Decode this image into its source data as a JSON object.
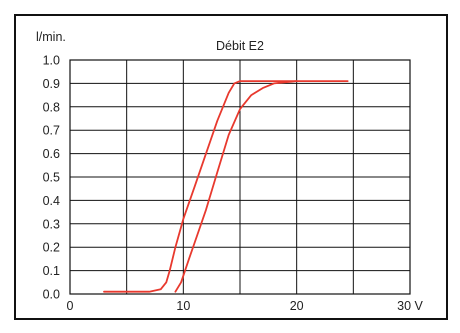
{
  "chart_data": {
    "type": "line",
    "title": "Débit E2",
    "ylabel": "l/min.",
    "xlabel": "",
    "x_unit_label": "V",
    "xlim": [
      0,
      30
    ],
    "ylim": [
      0.0,
      1.0
    ],
    "grid": true,
    "x_ticks": [
      0,
      10,
      20,
      30
    ],
    "x_tick_labels": [
      "0",
      "10",
      "20",
      "30 V"
    ],
    "y_ticks": [
      0.0,
      0.1,
      0.2,
      0.3,
      0.4,
      0.5,
      0.6,
      0.7,
      0.8,
      0.9,
      1.0
    ],
    "y_tick_labels": [
      "0.0",
      "0.1",
      "0.2",
      "0.3",
      "0.4",
      "0.5",
      "0.6",
      "0.7",
      "0.8",
      "0.9",
      "1.0"
    ],
    "series_color": "#e8392e",
    "series": [
      {
        "x": [
          3.0,
          5.0,
          7.0,
          8.0,
          8.5,
          8.8,
          9.3,
          10.0,
          11.0,
          12.0,
          13.0,
          14.0,
          14.5,
          15.0,
          16.0,
          18.0,
          20.0,
          22.0,
          24.5
        ],
        "y": [
          0.01,
          0.01,
          0.01,
          0.02,
          0.05,
          0.1,
          0.2,
          0.32,
          0.46,
          0.6,
          0.74,
          0.86,
          0.9,
          0.91,
          0.91,
          0.91,
          0.91,
          0.91,
          0.91
        ]
      },
      {
        "x": [
          9.3,
          9.8,
          10.5,
          11.0,
          12.0,
          13.0,
          14.0,
          15.0,
          16.0,
          17.0,
          18.0,
          19.0,
          20.0
        ],
        "y": [
          0.01,
          0.05,
          0.15,
          0.22,
          0.36,
          0.52,
          0.68,
          0.79,
          0.85,
          0.88,
          0.9,
          0.905,
          0.91
        ]
      }
    ]
  }
}
